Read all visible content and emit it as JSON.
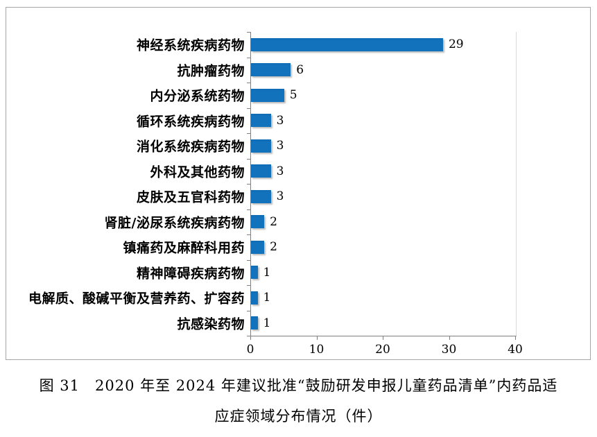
{
  "figure": {
    "caption_line1": "图 31　2020 年至 2024 年建议批准“鼓励研发申报儿童药品清单”内药品适",
    "caption_line2": "应症领域分布情况（件）"
  },
  "chart_data": {
    "type": "bar",
    "orientation": "horizontal",
    "title": "",
    "xlabel": "",
    "ylabel": "",
    "categories": [
      "神经系统疾病药物",
      "抗肿瘤药物",
      "内分泌系统药物",
      "循环系统疾病药物",
      "消化系统疾病药物",
      "外科及其他药物",
      "皮肤及五官科药物",
      "肾脏/泌尿系统疾病药物",
      "镇痛药及麻醉科用药",
      "精神障碍疾病药物",
      "电解质、酸碱平衡及营养药、扩容药",
      "抗感染药物"
    ],
    "values": [
      29,
      6,
      5,
      3,
      3,
      3,
      3,
      2,
      2,
      1,
      1,
      1
    ],
    "xlim": [
      0,
      40
    ],
    "x_ticks": [
      0,
      10,
      20,
      30,
      40
    ],
    "grid": false,
    "legend": false,
    "data_labels": true,
    "bar_color": "#1272bc",
    "axis_color": "#7f7f7f",
    "plot_border_color": "#d9d9d9",
    "frame_border_color": "#a6a6a6"
  }
}
